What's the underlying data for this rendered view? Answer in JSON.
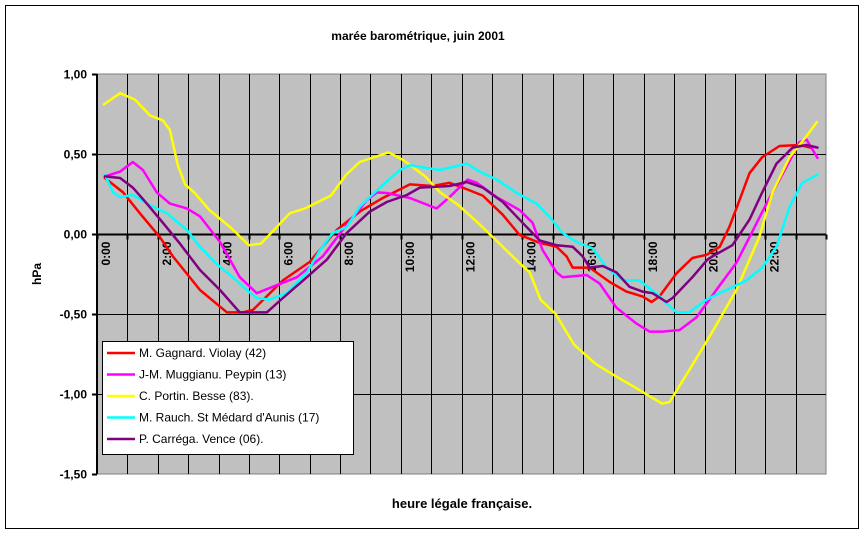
{
  "chart_data": {
    "type": "line",
    "title": "marée barométrique, juin 2001",
    "xlabel": "heure légale française.",
    "ylabel": "hPa",
    "xlim": [
      0,
      24
    ],
    "ylim": [
      -1.5,
      1.0
    ],
    "grid": true,
    "legend_position": "bottom-left",
    "plot_background": "#C0C0C0",
    "y_ticks": [
      {
        "value": 1.0,
        "label": "1,00"
      },
      {
        "value": 0.5,
        "label": "0,50"
      },
      {
        "value": 0.0,
        "label": "0,00"
      },
      {
        "value": -0.5,
        "label": "-0,50"
      },
      {
        "value": -1.0,
        "label": "-1,00"
      },
      {
        "value": -1.5,
        "label": "-1,50"
      }
    ],
    "x_ticks": [
      {
        "value": 0,
        "label": "0:00"
      },
      {
        "value": 2,
        "label": "2:00"
      },
      {
        "value": 4,
        "label": "4:00"
      },
      {
        "value": 6,
        "label": "6:00"
      },
      {
        "value": 8,
        "label": "8:00"
      },
      {
        "value": 10,
        "label": "10:00"
      },
      {
        "value": 12,
        "label": "12:00"
      },
      {
        "value": 14,
        "label": "14:00"
      },
      {
        "value": 16,
        "label": "16:00"
      },
      {
        "value": 18,
        "label": "18:00"
      },
      {
        "value": 20,
        "label": "20:00"
      },
      {
        "value": 22,
        "label": "22:00"
      }
    ],
    "series": [
      {
        "name": "M. Gagnard. Violay (42)",
        "color": "#FF0000",
        "points": [
          [
            0.26,
            0.35
          ],
          [
            0.86,
            0.26
          ],
          [
            1.41,
            0.13
          ],
          [
            2.07,
            -0.02
          ],
          [
            2.5,
            -0.14
          ],
          [
            3.39,
            -0.35
          ],
          [
            4.28,
            -0.49
          ],
          [
            4.8,
            -0.49
          ],
          [
            5.13,
            -0.475
          ],
          [
            6.12,
            -0.29
          ],
          [
            7.0,
            -0.175
          ],
          [
            7.89,
            0.025
          ],
          [
            8.65,
            0.14
          ],
          [
            9.41,
            0.225
          ],
          [
            10.3,
            0.31
          ],
          [
            11.05,
            0.3
          ],
          [
            11.6,
            0.32
          ],
          [
            12.04,
            0.29
          ],
          [
            12.7,
            0.24
          ],
          [
            13.36,
            0.12
          ],
          [
            13.91,
            -0.005
          ],
          [
            14.57,
            -0.055
          ],
          [
            15.13,
            -0.08
          ],
          [
            15.46,
            -0.14
          ],
          [
            15.66,
            -0.21
          ],
          [
            16.22,
            -0.21
          ],
          [
            16.88,
            -0.3
          ],
          [
            17.43,
            -0.36
          ],
          [
            17.96,
            -0.39
          ],
          [
            18.26,
            -0.425
          ],
          [
            18.52,
            -0.39
          ],
          [
            19.08,
            -0.245
          ],
          [
            19.6,
            -0.15
          ],
          [
            20.07,
            -0.13
          ],
          [
            20.5,
            -0.08
          ],
          [
            20.82,
            0.045
          ],
          [
            21.15,
            0.21
          ],
          [
            21.48,
            0.38
          ],
          [
            21.9,
            0.48
          ],
          [
            22.47,
            0.55
          ],
          [
            23.13,
            0.556
          ],
          [
            23.5,
            0.54
          ]
        ]
      },
      {
        "name": "J-M. Muggianu. Peypin (13)",
        "color": "#FF00FF",
        "points": [
          [
            0.26,
            0.36
          ],
          [
            0.76,
            0.39
          ],
          [
            1.18,
            0.45
          ],
          [
            1.51,
            0.4
          ],
          [
            1.97,
            0.26
          ],
          [
            2.4,
            0.19
          ],
          [
            2.96,
            0.16
          ],
          [
            3.39,
            0.11
          ],
          [
            4.05,
            -0.05
          ],
          [
            4.7,
            -0.27
          ],
          [
            5.26,
            -0.37
          ],
          [
            5.92,
            -0.32
          ],
          [
            6.58,
            -0.27
          ],
          [
            7.43,
            -0.14
          ],
          [
            8.09,
            0.025
          ],
          [
            8.88,
            0.21
          ],
          [
            9.21,
            0.26
          ],
          [
            9.54,
            0.256
          ],
          [
            10.3,
            0.225
          ],
          [
            11.18,
            0.16
          ],
          [
            11.6,
            0.23
          ],
          [
            12.2,
            0.34
          ],
          [
            12.5,
            0.32
          ],
          [
            13.16,
            0.23
          ],
          [
            13.91,
            0.15
          ],
          [
            14.34,
            0.07
          ],
          [
            14.67,
            -0.1
          ],
          [
            15.13,
            -0.24
          ],
          [
            15.33,
            -0.27
          ],
          [
            16.12,
            -0.256
          ],
          [
            16.55,
            -0.31
          ],
          [
            17.1,
            -0.46
          ],
          [
            17.76,
            -0.56
          ],
          [
            18.19,
            -0.61
          ],
          [
            18.62,
            -0.61
          ],
          [
            19.18,
            -0.6
          ],
          [
            19.74,
            -0.52
          ],
          [
            20.16,
            -0.41
          ],
          [
            20.39,
            -0.35
          ],
          [
            21.05,
            -0.18
          ],
          [
            21.48,
            -0.02
          ],
          [
            22.04,
            0.19
          ],
          [
            22.7,
            0.42
          ],
          [
            23.13,
            0.575
          ],
          [
            23.36,
            0.59
          ],
          [
            23.72,
            0.475
          ]
        ]
      },
      {
        "name": "C. Portin. Besse (83).",
        "color": "#FFFF00",
        "points": [
          [
            0.23,
            0.81
          ],
          [
            0.76,
            0.88
          ],
          [
            1.25,
            0.84
          ],
          [
            1.75,
            0.74
          ],
          [
            2.17,
            0.71
          ],
          [
            2.4,
            0.65
          ],
          [
            2.66,
            0.43
          ],
          [
            2.9,
            0.31
          ],
          [
            3.2,
            0.26
          ],
          [
            3.7,
            0.15
          ],
          [
            4.4,
            0.04
          ],
          [
            5.0,
            -0.07
          ],
          [
            5.4,
            -0.06
          ],
          [
            5.85,
            0.03
          ],
          [
            6.35,
            0.13
          ],
          [
            6.85,
            0.16
          ],
          [
            7.7,
            0.24
          ],
          [
            8.2,
            0.37
          ],
          [
            8.65,
            0.45
          ],
          [
            9.6,
            0.51
          ],
          [
            10.1,
            0.46
          ],
          [
            10.8,
            0.36
          ],
          [
            11.3,
            0.26
          ],
          [
            11.9,
            0.18
          ],
          [
            12.6,
            0.06
          ],
          [
            13.25,
            -0.06
          ],
          [
            13.9,
            -0.18
          ],
          [
            14.25,
            -0.24
          ],
          [
            14.6,
            -0.41
          ],
          [
            15.1,
            -0.5
          ],
          [
            15.7,
            -0.69
          ],
          [
            16.4,
            -0.81
          ],
          [
            17.0,
            -0.88
          ],
          [
            17.9,
            -0.98
          ],
          [
            18.6,
            -1.06
          ],
          [
            18.85,
            -1.05
          ],
          [
            19.5,
            -0.85
          ],
          [
            20.2,
            -0.63
          ],
          [
            21.05,
            -0.35
          ],
          [
            21.8,
            -0.02
          ],
          [
            22.24,
            0.26
          ],
          [
            22.8,
            0.48
          ],
          [
            23.35,
            0.61
          ],
          [
            23.7,
            0.7
          ]
        ]
      },
      {
        "name": "M. Rauch. St Médard d'Aunis (17)",
        "color": "#00FFFF",
        "points": [
          [
            0.26,
            0.37
          ],
          [
            0.53,
            0.26
          ],
          [
            0.76,
            0.23
          ],
          [
            1.18,
            0.245
          ],
          [
            1.64,
            0.19
          ],
          [
            2.3,
            0.13
          ],
          [
            2.96,
            0.025
          ],
          [
            3.39,
            -0.08
          ],
          [
            3.95,
            -0.19
          ],
          [
            4.47,
            -0.27
          ],
          [
            4.93,
            -0.35
          ],
          [
            5.26,
            -0.4
          ],
          [
            5.69,
            -0.41
          ],
          [
            6.25,
            -0.37
          ],
          [
            6.91,
            -0.24
          ],
          [
            7.34,
            -0.1
          ],
          [
            7.76,
            0.006
          ],
          [
            8.22,
            0.044
          ],
          [
            8.65,
            0.17
          ],
          [
            9.31,
            0.29
          ],
          [
            9.97,
            0.4
          ],
          [
            10.3,
            0.43
          ],
          [
            11.28,
            0.4
          ],
          [
            12.17,
            0.44
          ],
          [
            12.6,
            0.39
          ],
          [
            13.16,
            0.34
          ],
          [
            13.82,
            0.256
          ],
          [
            14.47,
            0.19
          ],
          [
            14.9,
            0.106
          ],
          [
            15.33,
            0.006
          ],
          [
            15.79,
            -0.05
          ],
          [
            16.32,
            -0.09
          ],
          [
            16.78,
            -0.21
          ],
          [
            17.3,
            -0.29
          ],
          [
            17.86,
            -0.29
          ],
          [
            18.52,
            -0.39
          ],
          [
            19.08,
            -0.49
          ],
          [
            19.5,
            -0.49
          ],
          [
            20.07,
            -0.41
          ],
          [
            20.72,
            -0.35
          ],
          [
            21.38,
            -0.29
          ],
          [
            21.9,
            -0.21
          ],
          [
            22.37,
            -0.08
          ],
          [
            22.8,
            0.17
          ],
          [
            23.22,
            0.32
          ],
          [
            23.72,
            0.37
          ]
        ]
      },
      {
        "name": "P. Carréga. Vence (06).",
        "color": "#800080",
        "points": [
          [
            0.26,
            0.36
          ],
          [
            0.76,
            0.35
          ],
          [
            1.18,
            0.29
          ],
          [
            1.64,
            0.19
          ],
          [
            2.17,
            0.07
          ],
          [
            2.73,
            -0.06
          ],
          [
            3.39,
            -0.225
          ],
          [
            4.05,
            -0.35
          ],
          [
            4.7,
            -0.49
          ],
          [
            5.59,
            -0.49
          ],
          [
            6.12,
            -0.4
          ],
          [
            6.91,
            -0.27
          ],
          [
            7.57,
            -0.16
          ],
          [
            8.22,
            0.006
          ],
          [
            8.98,
            0.14
          ],
          [
            9.54,
            0.2
          ],
          [
            10.2,
            0.244
          ],
          [
            10.63,
            0.29
          ],
          [
            11.6,
            0.3
          ],
          [
            12.17,
            0.325
          ],
          [
            12.7,
            0.29
          ],
          [
            13.36,
            0.2
          ],
          [
            14.01,
            0.07
          ],
          [
            14.57,
            -0.04
          ],
          [
            15.13,
            -0.07
          ],
          [
            15.66,
            -0.08
          ],
          [
            15.99,
            -0.14
          ],
          [
            16.22,
            -0.21
          ],
          [
            16.65,
            -0.2
          ],
          [
            17.1,
            -0.24
          ],
          [
            17.53,
            -0.33
          ],
          [
            17.96,
            -0.36
          ],
          [
            18.29,
            -0.37
          ],
          [
            18.75,
            -0.425
          ],
          [
            18.95,
            -0.4
          ],
          [
            19.6,
            -0.27
          ],
          [
            20.1,
            -0.16
          ],
          [
            20.26,
            -0.14
          ],
          [
            20.92,
            -0.07
          ],
          [
            21.48,
            0.09
          ],
          [
            21.9,
            0.26
          ],
          [
            22.37,
            0.44
          ],
          [
            22.9,
            0.54
          ],
          [
            23.36,
            0.556
          ],
          [
            23.72,
            0.54
          ]
        ]
      }
    ]
  }
}
